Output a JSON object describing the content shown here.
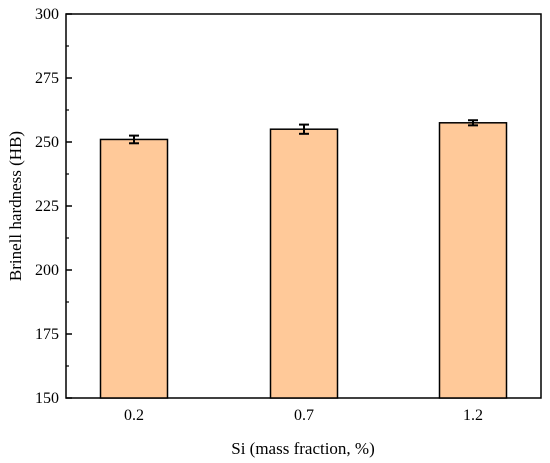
{
  "chart_data": {
    "type": "bar",
    "categories": [
      "0.2",
      "0.7",
      "1.2"
    ],
    "values": [
      251,
      255,
      257.5
    ],
    "errors": [
      1.5,
      1.8,
      1.0
    ],
    "xlabel": "Si (mass fraction, %)",
    "ylabel": "Brinell hardness (HB)",
    "ylim": [
      150,
      300
    ],
    "yticks": [
      150,
      175,
      200,
      225,
      250,
      275,
      300
    ],
    "bar_color": "#FFC999",
    "bar_edge_color": "#000000",
    "grid": false,
    "legend": "none"
  }
}
